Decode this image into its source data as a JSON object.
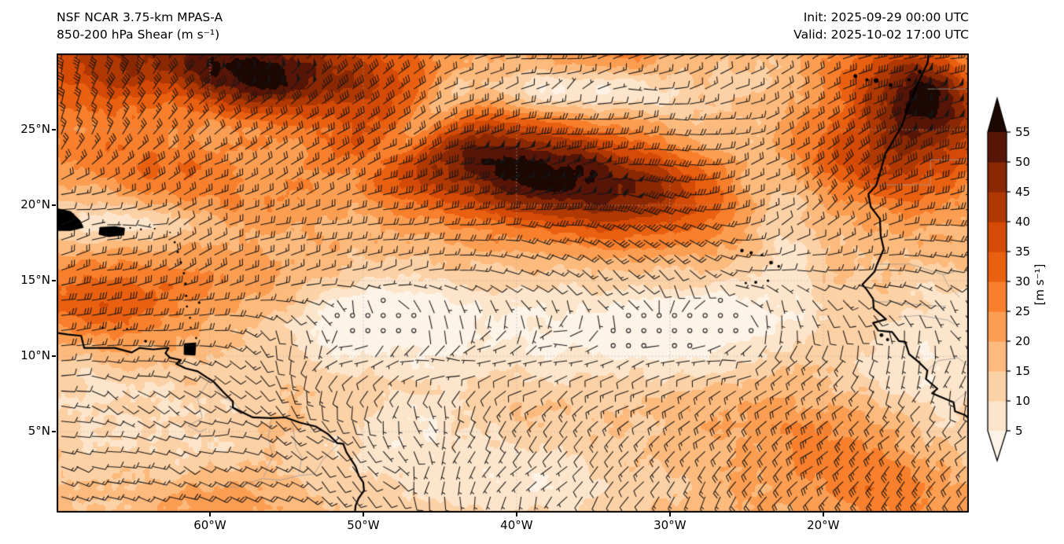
{
  "header": {
    "title_line1": "NSF NCAR 3.75-km MPAS-A",
    "title_line2": "850-200 hPa Shear (m s⁻¹)",
    "init_label": "Init: 2025-09-29 00:00 UTC",
    "valid_label": "Valid: 2025-10-02 17:00 UTC"
  },
  "chart_data": {
    "type": "heatmap",
    "subtype": "wind-shear-map-with-barbs",
    "title": "NSF NCAR 3.75-km MPAS-A 850-200 hPa Shear (m s⁻¹)",
    "field_units": "m s⁻¹",
    "lon_range": [
      -70.0,
      -10.5
    ],
    "lat_range": [
      -0.35,
      30.05
    ],
    "grid_on": true,
    "x_ticks": [
      {
        "lon": -60,
        "label": "60°W"
      },
      {
        "lon": -50,
        "label": "50°W"
      },
      {
        "lon": -40,
        "label": "40°W"
      },
      {
        "lon": -30,
        "label": "30°W"
      },
      {
        "lon": -20,
        "label": "20°W"
      }
    ],
    "y_ticks": [
      {
        "lat": 25,
        "label": "25°N"
      },
      {
        "lat": 20,
        "label": "20°N"
      },
      {
        "lat": 15,
        "label": "15°N"
      },
      {
        "lat": 10,
        "label": "10°N"
      },
      {
        "lat": 5,
        "label": "5°N"
      }
    ],
    "colorbar": {
      "unit_label": "[m s⁻¹]",
      "ticks": [
        5,
        10,
        15,
        20,
        25,
        30,
        35,
        40,
        45,
        50,
        55
      ],
      "levels": [
        5,
        10,
        15,
        20,
        25,
        30,
        35,
        40,
        45,
        50,
        55
      ],
      "extend": "both",
      "colors": [
        "#fdf3e6",
        "#fde5cb",
        "#fdd1a6",
        "#fdba7d",
        "#fc9e52",
        "#f87f2c",
        "#ea6011",
        "#d44a06",
        "#b03803",
        "#8a2804",
        "#571507",
        "#1c0703"
      ]
    },
    "barbs": {
      "grid_spacing_deg": 1.0,
      "half_barb_ms": 5,
      "full_barb_ms": 10,
      "pennant_ms": 50,
      "calm_threshold_ms": 2.5,
      "color": "#151515"
    },
    "shear_field_model": {
      "base_ms": 17,
      "features_lon_lat_amp_sx_sy_rot": [
        [
          -55.0,
          29.2,
          30,
          7.0,
          2.2,
          -6
        ],
        [
          -57.5,
          28.3,
          14,
          3.2,
          1.6,
          -18
        ],
        [
          -67.0,
          29.5,
          20,
          4.0,
          2.5,
          -5
        ],
        [
          -67.5,
          13.2,
          16,
          4.2,
          1.9,
          -8
        ],
        [
          -61.0,
          15.0,
          9,
          5.0,
          1.8,
          -6
        ],
        [
          -63.0,
          22.0,
          13,
          6.5,
          2.2,
          -10
        ],
        [
          -40.5,
          22.4,
          31,
          6.0,
          2.7,
          -9
        ],
        [
          -40.0,
          22.6,
          6,
          3.0,
          1.5,
          -9
        ],
        [
          -48.5,
          23.2,
          10,
          2.6,
          2.0,
          -35
        ],
        [
          -31.5,
          21.0,
          20,
          5.0,
          2.4,
          -6
        ],
        [
          -22.5,
          24.6,
          13,
          4.5,
          1.9,
          -30
        ],
        [
          -13.8,
          26.4,
          34,
          3.8,
          2.9,
          -38
        ],
        [
          -12.8,
          27.4,
          10,
          2.2,
          1.4,
          -38
        ],
        [
          -16.5,
          22.5,
          10,
          3.0,
          1.8,
          -42
        ],
        [
          -14.0,
          1.0,
          11,
          6.0,
          2.8,
          0
        ],
        [
          -21.0,
          4.5,
          6,
          5.0,
          2.5,
          -10
        ],
        [
          -33.0,
          29.8,
          12,
          3.5,
          1.2,
          -5
        ],
        [
          -59.5,
          0.5,
          8,
          3.0,
          1.5,
          0
        ],
        [
          -66.0,
          19.2,
          -13,
          4.0,
          1.3,
          -4
        ],
        [
          -46.5,
          25.2,
          -18,
          3.2,
          1.0,
          42
        ],
        [
          -37.5,
          27.6,
          -16,
          5.0,
          1.1,
          2
        ],
        [
          -27.5,
          26.8,
          -9,
          4.5,
          2.2,
          -18
        ],
        [
          -23.2,
          20.5,
          -10,
          1.7,
          5.0,
          12
        ],
        [
          -41.0,
          11.8,
          -12,
          13.0,
          2.6,
          2
        ],
        [
          -48.5,
          12.6,
          -7,
          3.5,
          1.6,
          8
        ],
        [
          -51.0,
          12.9,
          -6,
          2.2,
          1.6,
          0
        ],
        [
          -30.0,
          11.3,
          -8,
          4.5,
          1.9,
          0
        ],
        [
          -26.0,
          12.8,
          -7,
          3.0,
          1.7,
          0
        ],
        [
          -41.0,
          1.8,
          -11,
          6.5,
          2.4,
          0
        ],
        [
          -47.5,
          5.5,
          -8,
          3.2,
          1.8,
          15
        ],
        [
          -63.0,
          4.5,
          -7,
          5.0,
          2.6,
          0
        ],
        [
          -68.5,
          7.5,
          -6,
          3.0,
          2.0,
          0
        ],
        [
          -13.8,
          9.2,
          -11,
          3.4,
          2.2,
          0
        ],
        [
          -11.0,
          3.5,
          -9,
          3.0,
          2.6,
          0
        ],
        [
          -11.8,
          13.5,
          -7,
          2.0,
          2.2,
          0
        ]
      ]
    },
    "flow_direction_grid": {
      "lats": [
        0,
        5,
        10,
        15,
        20,
        25,
        30
      ],
      "lons": [
        -70,
        -60,
        -50,
        -40,
        -30,
        -20,
        -10
      ],
      "wind_from_deg": [
        [
          100,
          110,
          130,
          200,
          200,
          225,
          220
        ],
        [
          100,
          110,
          150,
          205,
          230,
          230,
          220
        ],
        [
          90,
          100,
          265,
          265,
          260,
          240,
          160
        ],
        [
          75,
          70,
          85,
          120,
          150,
          100,
          110
        ],
        [
          80,
          70,
          70,
          85,
          100,
          40,
          100
        ],
        [
          15,
          55,
          55,
          80,
          85,
          60,
          70
        ],
        [
          5,
          45,
          45,
          80,
          75,
          65,
          75
        ]
      ]
    },
    "coastlines": {
      "south_america": [
        [
          -70,
          11.55
        ],
        [
          -69.3,
          11.45
        ],
        [
          -68.4,
          11.35
        ],
        [
          -68.2,
          10.55
        ],
        [
          -67.6,
          10.55
        ],
        [
          -66.2,
          10.55
        ],
        [
          -65.1,
          10.25
        ],
        [
          -64.6,
          10.55
        ],
        [
          -63.7,
          10.45
        ],
        [
          -62.7,
          10.55
        ],
        [
          -62.9,
          10.2
        ],
        [
          -62.6,
          9.9
        ],
        [
          -61.9,
          9.75
        ],
        [
          -62.2,
          9.5
        ],
        [
          -61.6,
          9.2
        ],
        [
          -60.8,
          9.0
        ],
        [
          -60.2,
          8.6
        ],
        [
          -59.8,
          8.35
        ],
        [
          -59.1,
          7.6
        ],
        [
          -58.5,
          7.0
        ],
        [
          -58.5,
          6.6
        ],
        [
          -57.7,
          6.2
        ],
        [
          -57.2,
          5.95
        ],
        [
          -56.0,
          5.9
        ],
        [
          -55.1,
          5.95
        ],
        [
          -54.1,
          5.6
        ],
        [
          -53.1,
          5.35
        ],
        [
          -52.3,
          4.85
        ],
        [
          -51.7,
          4.25
        ],
        [
          -51.3,
          4.2
        ],
        [
          -51.1,
          3.65
        ],
        [
          -50.5,
          2.7
        ],
        [
          -50.3,
          2.1
        ],
        [
          -50.0,
          1.65
        ],
        [
          -49.95,
          1.1
        ],
        [
          -50.3,
          0.6
        ],
        [
          -50.5,
          0.1
        ],
        [
          -50.55,
          -0.4
        ]
      ],
      "africa": [
        [
          -13.1,
          30.1
        ],
        [
          -13.2,
          29.4
        ],
        [
          -13.9,
          27.9
        ],
        [
          -14.5,
          26.4
        ],
        [
          -14.85,
          25.3
        ],
        [
          -15.6,
          24.0
        ],
        [
          -15.95,
          23.4
        ],
        [
          -16.25,
          22.3
        ],
        [
          -16.55,
          21.3
        ],
        [
          -17.05,
          20.75
        ],
        [
          -16.9,
          19.9
        ],
        [
          -16.3,
          19.1
        ],
        [
          -16.25,
          18.0
        ],
        [
          -16.05,
          17.1
        ],
        [
          -16.5,
          16.05
        ],
        [
          -16.65,
          15.6
        ],
        [
          -17.45,
          14.75
        ],
        [
          -17.15,
          14.4
        ],
        [
          -16.75,
          13.8
        ],
        [
          -16.7,
          13.15
        ],
        [
          -15.9,
          12.45
        ],
        [
          -16.75,
          12.2
        ],
        [
          -16.4,
          11.7
        ],
        [
          -15.5,
          11.6
        ],
        [
          -15.05,
          11.0
        ],
        [
          -14.65,
          10.95
        ],
        [
          -14.4,
          10.15
        ],
        [
          -13.75,
          9.6
        ],
        [
          -13.2,
          9.05
        ],
        [
          -13.3,
          8.5
        ],
        [
          -12.55,
          7.85
        ],
        [
          -12.9,
          7.55
        ],
        [
          -11.5,
          6.95
        ],
        [
          -11.4,
          6.35
        ],
        [
          -10.75,
          6.1
        ],
        [
          -10.45,
          5.85
        ]
      ],
      "island_polys": {
        "puerto_rico": [
          [
            -67.15,
            18.5
          ],
          [
            -66.2,
            18.55
          ],
          [
            -65.6,
            18.45
          ],
          [
            -65.65,
            18.05
          ],
          [
            -66.6,
            17.95
          ],
          [
            -67.2,
            18.1
          ]
        ],
        "hispaniola": [
          [
            -70,
            19.75
          ],
          [
            -69.1,
            19.55
          ],
          [
            -68.5,
            18.95
          ],
          [
            -68.3,
            18.55
          ],
          [
            -69.1,
            18.35
          ],
          [
            -70,
            18.35
          ]
        ],
        "trinidad": [
          [
            -61.65,
            10.8
          ],
          [
            -60.95,
            10.85
          ],
          [
            -61.0,
            10.1
          ],
          [
            -61.65,
            10.15
          ]
        ]
      },
      "island_dots_lon_lat_r": [
        [
          -65.2,
          18.5,
          1.1
        ],
        [
          -64.5,
          18.4,
          1.2
        ],
        [
          -63.6,
          18.45,
          1.1
        ],
        [
          -62.6,
          18.2,
          1.0
        ],
        [
          -62.3,
          17.55,
          1.3
        ],
        [
          -62.1,
          16.9,
          1.5
        ],
        [
          -61.9,
          16.2,
          1.7
        ],
        [
          -61.7,
          15.5,
          1.5
        ],
        [
          -61.6,
          14.8,
          1.6
        ],
        [
          -61.55,
          14.0,
          1.5
        ],
        [
          -61.5,
          13.3,
          1.4
        ],
        [
          -61.3,
          12.55,
          1.3
        ],
        [
          -61.25,
          11.9,
          1.2
        ],
        [
          -60.7,
          13.55,
          1.6
        ],
        [
          -60.9,
          11.2,
          1.3
        ],
        [
          -67.0,
          11.9,
          1.5
        ],
        [
          -66.2,
          11.8,
          1.5
        ],
        [
          -65.4,
          11.8,
          1.3
        ],
        [
          -64.2,
          11.0,
          1.8
        ],
        [
          -25.3,
          17.0,
          2.2
        ],
        [
          -24.7,
          16.85,
          2.0
        ],
        [
          -24.0,
          16.7,
          1.6
        ],
        [
          -23.4,
          16.2,
          2.4
        ],
        [
          -22.9,
          15.95,
          1.8
        ],
        [
          -23.6,
          15.0,
          1.6
        ],
        [
          -24.4,
          14.9,
          1.9
        ],
        [
          -25.05,
          14.85,
          1.5
        ],
        [
          -17.9,
          28.55,
          2.5
        ],
        [
          -17.15,
          28.3,
          2.0
        ],
        [
          -16.55,
          28.25,
          3.0
        ],
        [
          -15.6,
          27.95,
          2.5
        ],
        [
          -14.4,
          28.3,
          2.0
        ],
        [
          -13.7,
          28.85,
          2.5
        ],
        [
          -16.2,
          11.4,
          2.4
        ],
        [
          -15.8,
          11.1,
          2.0
        ]
      ],
      "borders_gray": [
        [
          [
            -60.0,
            8.5
          ],
          [
            -60.8,
            7.2
          ],
          [
            -60.5,
            5.9
          ],
          [
            -61.4,
            5.4
          ],
          [
            -60.7,
            5.0
          ],
          [
            -60.2,
            5.2
          ]
        ],
        [
          [
            -59.8,
            8.35
          ],
          [
            -59.2,
            7.3
          ],
          [
            -58.4,
            6.9
          ],
          [
            -57.8,
            6.2
          ]
        ],
        [
          [
            -54.6,
            5.4
          ],
          [
            -54.4,
            4.0
          ],
          [
            -54.0,
            3.3
          ],
          [
            -54.2,
            2.3
          ]
        ],
        [
          [
            -51.6,
            4.2
          ],
          [
            -52.6,
            3.2
          ],
          [
            -53.2,
            2.2
          ],
          [
            -54.2,
            2.1
          ],
          [
            -55.4,
            1.8
          ],
          [
            -56.6,
            1.9
          ],
          [
            -58.3,
            1.3
          ],
          [
            -59.5,
            1.5
          ]
        ],
        [
          [
            -56.0,
            5.9
          ],
          [
            -56.2,
            4.6
          ],
          [
            -55.9,
            3.4
          ],
          [
            -56.5,
            2.0
          ]
        ],
        [
          [
            -16.4,
            16.1
          ],
          [
            -14.3,
            16.1
          ],
          [
            -12.2,
            15.4
          ],
          [
            -11.4,
            15.6
          ]
        ],
        [
          [
            -16.7,
            13.6
          ],
          [
            -15.6,
            13.6
          ],
          [
            -13.8,
            13.4
          ],
          [
            -12.0,
            13.3
          ]
        ],
        [
          [
            -15.1,
            12.6
          ],
          [
            -13.7,
            12.7
          ],
          [
            -11.9,
            12.4
          ],
          [
            -11.4,
            12.1
          ]
        ],
        [
          [
            -13.3,
            9.0
          ],
          [
            -12.5,
            9.7
          ],
          [
            -11.2,
            9.9
          ],
          [
            -10.6,
            9.4
          ]
        ],
        [
          [
            -11.5,
            6.9
          ],
          [
            -10.7,
            7.6
          ]
        ],
        [
          [
            -17.0,
            21.35
          ],
          [
            -13.0,
            21.35
          ],
          [
            -13.0,
            23.0
          ],
          [
            -10.6,
            23.0
          ]
        ],
        [
          [
            -13.2,
            27.7
          ],
          [
            -10.6,
            27.7
          ]
        ],
        [
          [
            -12.2,
            15.4
          ],
          [
            -11.8,
            14.6
          ],
          [
            -11.1,
            13.9
          ]
        ]
      ]
    },
    "gridline_color": "#b0b0b0",
    "coast_color": "#000000",
    "background_land_sea": "shaded by shear value"
  }
}
